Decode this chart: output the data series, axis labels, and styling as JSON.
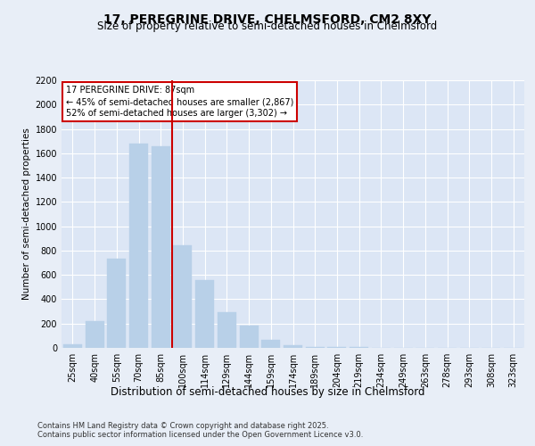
{
  "title": "17, PEREGRINE DRIVE, CHELMSFORD, CM2 8XY",
  "subtitle": "Size of property relative to semi-detached houses in Chelmsford",
  "xlabel": "Distribution of semi-detached houses by size in Chelmsford",
  "ylabel": "Number of semi-detached properties",
  "categories": [
    "25sqm",
    "40sqm",
    "55sqm",
    "70sqm",
    "85sqm",
    "100sqm",
    "114sqm",
    "129sqm",
    "144sqm",
    "159sqm",
    "174sqm",
    "189sqm",
    "204sqm",
    "219sqm",
    "234sqm",
    "249sqm",
    "263sqm",
    "278sqm",
    "293sqm",
    "308sqm",
    "323sqm"
  ],
  "values": [
    30,
    220,
    730,
    1680,
    1660,
    840,
    560,
    290,
    180,
    65,
    25,
    10,
    8,
    5,
    3,
    2,
    2,
    1,
    1,
    0,
    0
  ],
  "bar_color": "#b8d0e8",
  "bar_edgecolor": "#b8d0e8",
  "vline_color": "#cc0000",
  "annotation_title": "17 PEREGRINE DRIVE: 87sqm",
  "annotation_line1": "← 45% of semi-detached houses are smaller (2,867)",
  "annotation_line2": "52% of semi-detached houses are larger (3,302) →",
  "annotation_box_color": "#cc0000",
  "ylim": [
    0,
    2200
  ],
  "yticks": [
    0,
    200,
    400,
    600,
    800,
    1000,
    1200,
    1400,
    1600,
    1800,
    2000,
    2200
  ],
  "background_color": "#e8eef7",
  "plot_bg_color": "#dce6f5",
  "footer1": "Contains HM Land Registry data © Crown copyright and database right 2025.",
  "footer2": "Contains public sector information licensed under the Open Government Licence v3.0.",
  "title_fontsize": 10,
  "subtitle_fontsize": 8.5,
  "xlabel_fontsize": 8.5,
  "ylabel_fontsize": 7.5,
  "tick_fontsize": 7,
  "annotation_fontsize": 7,
  "footer_fontsize": 6
}
